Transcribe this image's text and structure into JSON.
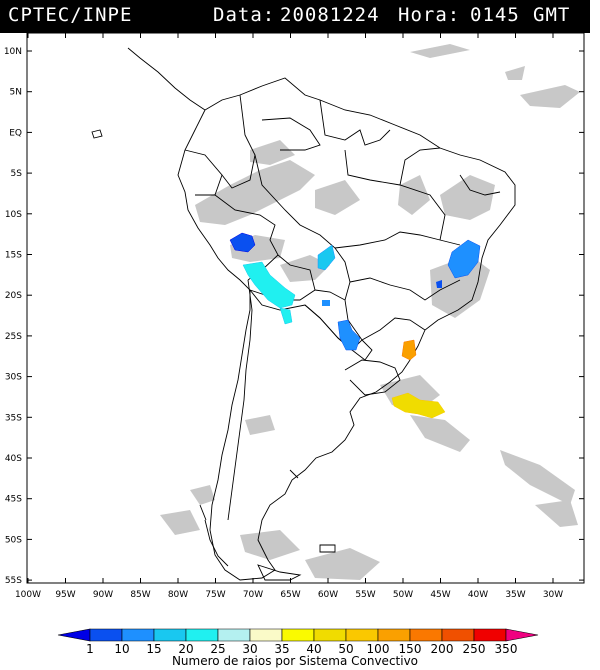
{
  "header": {
    "source": "CPTEC/INPE",
    "date_label": "Data:",
    "date_value": "20081224",
    "time_label": "Hora:",
    "time_value": "0145",
    "tz": "GMT"
  },
  "map": {
    "lat_labels": [
      "10N",
      "5N",
      "EQ",
      "5S",
      "10S",
      "15S",
      "20S",
      "25S",
      "30S",
      "35S",
      "40S",
      "45S",
      "50S",
      "55S"
    ],
    "lon_labels": [
      "100W",
      "95W",
      "90W",
      "85W",
      "80W",
      "75W",
      "70W",
      "65W",
      "60W",
      "55W",
      "50W",
      "45W",
      "40W",
      "35W",
      "30W"
    ],
    "lat_range": [
      -56,
      12
    ],
    "lon_range": [
      -100,
      -27
    ]
  },
  "colorbar": {
    "ticks": [
      "1",
      "10",
      "15",
      "20",
      "25",
      "30",
      "35",
      "40",
      "50",
      "100",
      "150",
      "200",
      "250",
      "350"
    ],
    "colors": [
      "#0000e6",
      "#0a50f0",
      "#1e90ff",
      "#19c8f0",
      "#20f0f0",
      "#b4f0f0",
      "#fafac8",
      "#fafa00",
      "#f0dc00",
      "#fac800",
      "#faa000",
      "#fa7800",
      "#f05000",
      "#f00000",
      "#f00080"
    ],
    "title": "Numero de raios por Sistema Convectivo"
  },
  "systems": [
    {
      "name": "peru-north",
      "color": "#0a50f0"
    },
    {
      "name": "peru-coast",
      "color": "#20f0f0"
    },
    {
      "name": "bolivia",
      "color": "#19c8f0"
    },
    {
      "name": "paraguay",
      "color": "#1e90ff"
    },
    {
      "name": "minas",
      "color": "#1e90ff"
    },
    {
      "name": "santa-catarina",
      "color": "#faa000"
    },
    {
      "name": "atlantic-south",
      "color": "#f0dc00"
    }
  ],
  "colors": {
    "cloud": "#c8c8c8",
    "border": "#000000"
  }
}
